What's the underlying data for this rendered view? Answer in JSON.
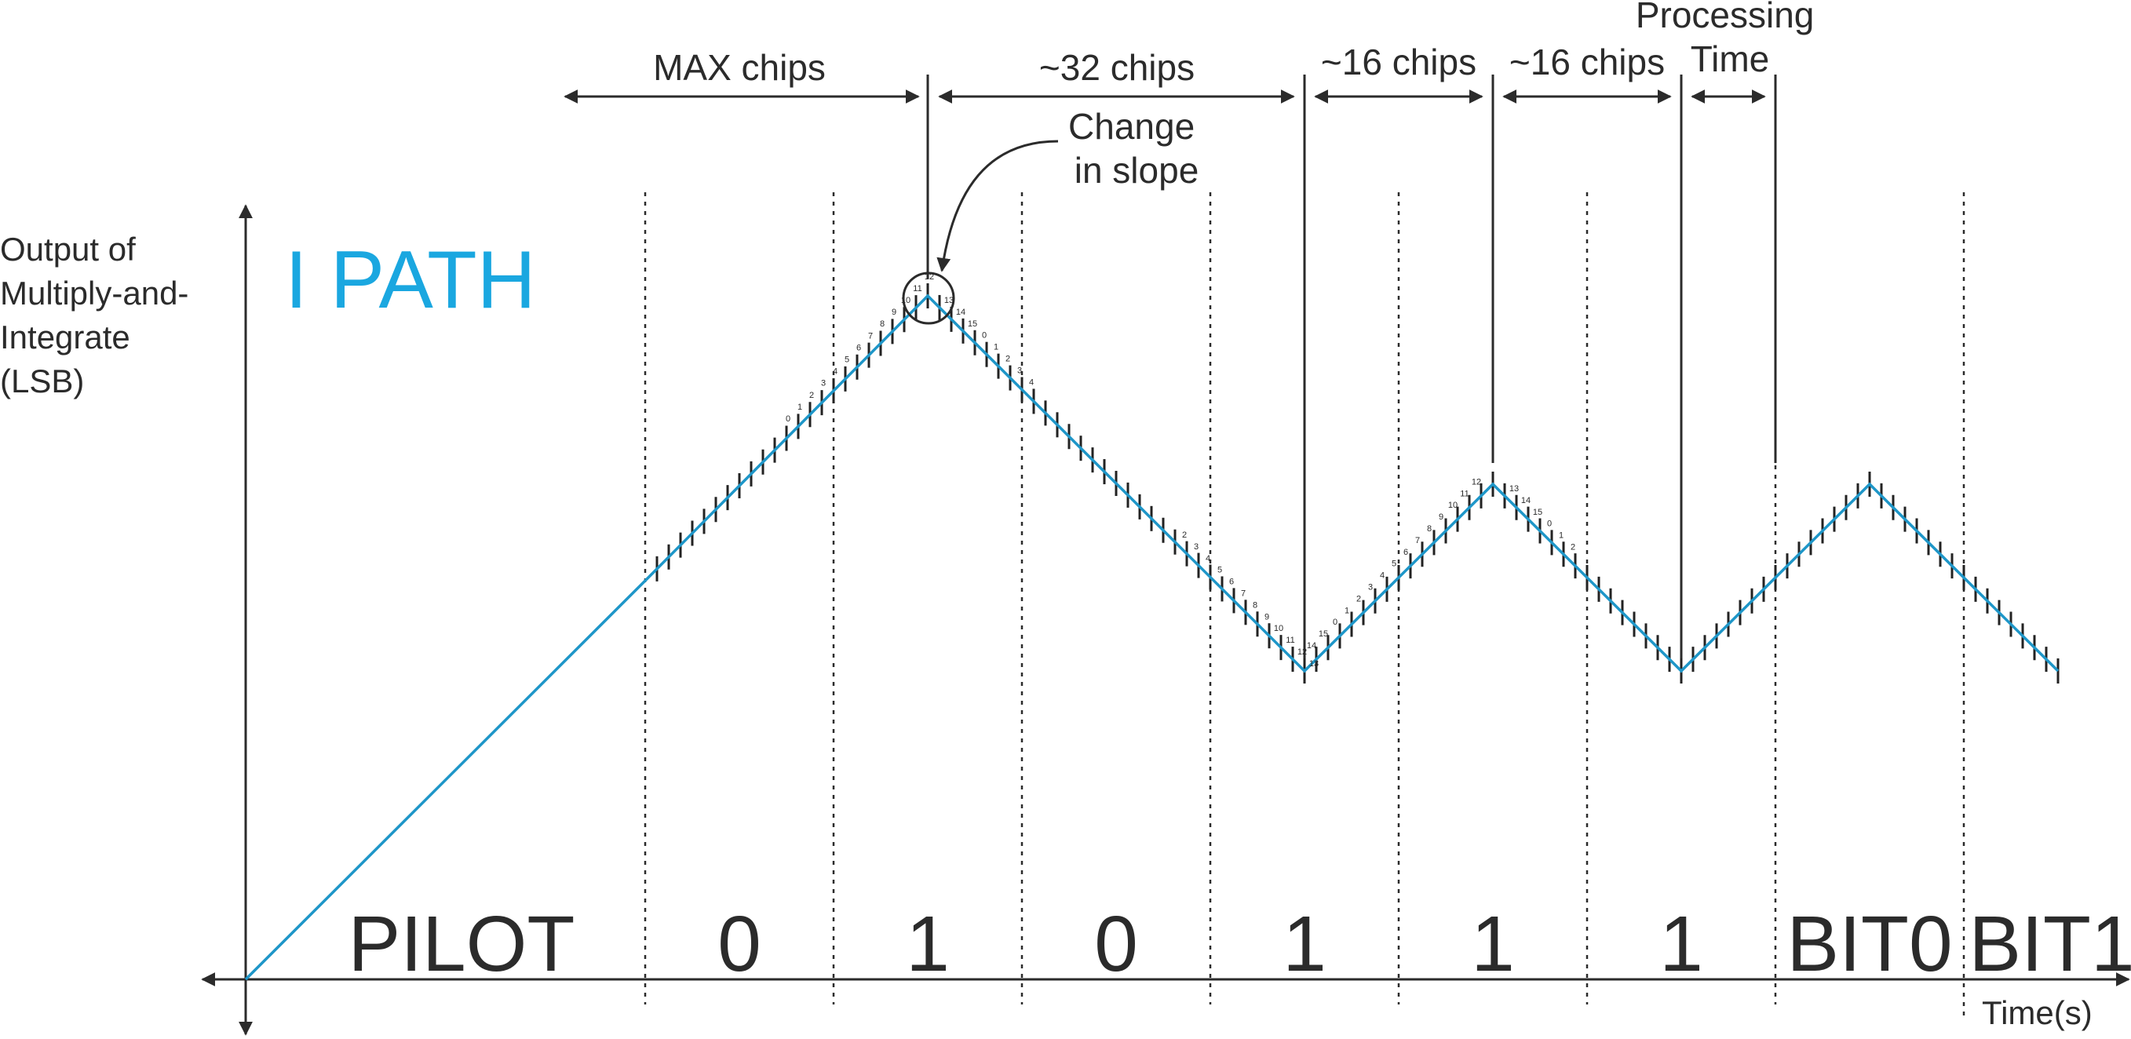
{
  "title": "I PATH",
  "ylabel": [
    "Output of",
    "Multiply-and-",
    "Integrate",
    "(LSB)"
  ],
  "xlabel": "Time(s)",
  "segments": [
    "PILOT",
    "0",
    "1",
    "0",
    "1",
    "1",
    "1",
    "BIT0",
    "BIT1"
  ],
  "spans": {
    "max": "MAX chips",
    "s32": "~32 chips",
    "s16a": "~16 chips",
    "s16b": "~16 chips",
    "proc": [
      "Processing",
      "Time"
    ]
  },
  "annotation": [
    "Change",
    "in slope"
  ],
  "chip_numbers": {
    "up1": [
      "0",
      "1",
      "2",
      "3",
      "4",
      "5",
      "6",
      "7",
      "8",
      "9",
      "10",
      "11",
      "12"
    ],
    "down1_top": [
      "13",
      "14",
      "15",
      "0",
      "1",
      "2",
      "3",
      "4"
    ],
    "down1_bottom": [
      "2",
      "3",
      "4",
      "5",
      "6",
      "7",
      "8",
      "9",
      "10",
      "11",
      "12",
      "13"
    ],
    "up2": [
      "14",
      "15",
      "0",
      "1",
      "2",
      "3",
      "4",
      "5",
      "6",
      "7",
      "8",
      "9",
      "10",
      "11",
      "12"
    ],
    "down2": [
      "13",
      "14",
      "15",
      "0",
      "1",
      "2"
    ]
  },
  "colors": {
    "signal": "#1e96c8",
    "title": "#1aa7e0",
    "ink": "#2b2b2b"
  }
}
